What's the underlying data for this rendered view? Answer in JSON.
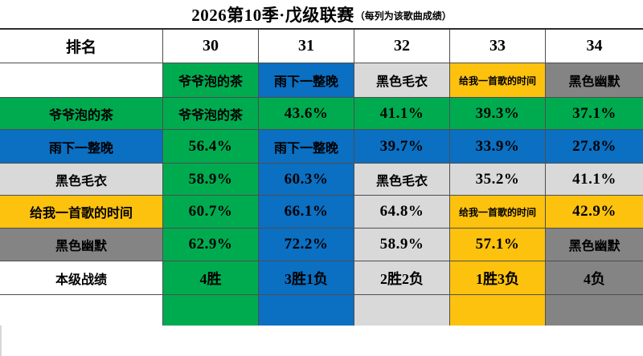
{
  "title": {
    "main": "2026第10季·戊级联赛",
    "note": "（每列为该歌曲成绩）"
  },
  "colors": {
    "white": "#ffffff",
    "green": "#00ab50",
    "blue": "#0b6fc2",
    "lightgray": "#d9d9d9",
    "yellow": "#fdc20e",
    "darkgray": "#848484"
  },
  "table": {
    "rows": [
      {
        "cells": [
          {
            "t": "排名",
            "c": "white"
          },
          {
            "t": "30",
            "c": "white"
          },
          {
            "t": "31",
            "c": "white"
          },
          {
            "t": "32",
            "c": "white"
          },
          {
            "t": "33",
            "c": "white"
          },
          {
            "t": "34",
            "c": "white"
          }
        ]
      },
      {
        "cells": [
          {
            "t": "",
            "c": "white"
          },
          {
            "t": "爷爷泡的茶",
            "c": "green"
          },
          {
            "t": "雨下一整晚",
            "c": "blue"
          },
          {
            "t": "黑色毛衣",
            "c": "lightgray"
          },
          {
            "t": "给我一首歌的时间",
            "c": "yellow"
          },
          {
            "t": "黑色幽默",
            "c": "darkgray"
          }
        ]
      },
      {
        "cells": [
          {
            "t": "爷爷泡的茶",
            "c": "green"
          },
          {
            "t": "爷爷泡的茶",
            "c": "green"
          },
          {
            "t": "43.6%",
            "c": "green"
          },
          {
            "t": "41.1%",
            "c": "green"
          },
          {
            "t": "39.3%",
            "c": "green"
          },
          {
            "t": "37.1%",
            "c": "green"
          }
        ]
      },
      {
        "cells": [
          {
            "t": "雨下一整晚",
            "c": "blue"
          },
          {
            "t": "56.4%",
            "c": "green"
          },
          {
            "t": "雨下一整晚",
            "c": "blue"
          },
          {
            "t": "39.7%",
            "c": "blue"
          },
          {
            "t": "33.9%",
            "c": "blue"
          },
          {
            "t": "27.8%",
            "c": "blue"
          }
        ]
      },
      {
        "cells": [
          {
            "t": "黑色毛衣",
            "c": "lightgray"
          },
          {
            "t": "58.9%",
            "c": "green"
          },
          {
            "t": "60.3%",
            "c": "blue"
          },
          {
            "t": "黑色毛衣",
            "c": "lightgray"
          },
          {
            "t": "35.2%",
            "c": "lightgray"
          },
          {
            "t": "41.1%",
            "c": "lightgray"
          }
        ]
      },
      {
        "cells": [
          {
            "t": "给我一首歌的时间",
            "c": "yellow"
          },
          {
            "t": "60.7%",
            "c": "green"
          },
          {
            "t": "66.1%",
            "c": "blue"
          },
          {
            "t": "64.8%",
            "c": "lightgray"
          },
          {
            "t": "给我一首歌的时间",
            "c": "yellow"
          },
          {
            "t": "42.9%",
            "c": "yellow"
          }
        ]
      },
      {
        "cells": [
          {
            "t": "黑色幽默",
            "c": "darkgray"
          },
          {
            "t": "62.9%",
            "c": "green"
          },
          {
            "t": "72.2%",
            "c": "blue"
          },
          {
            "t": "58.9%",
            "c": "lightgray"
          },
          {
            "t": "57.1%",
            "c": "yellow"
          },
          {
            "t": "黑色幽默",
            "c": "darkgray"
          }
        ]
      },
      {
        "cells": [
          {
            "t": "本级战绩",
            "c": "white"
          },
          {
            "t": "4胜",
            "c": "green"
          },
          {
            "t": "3胜1负",
            "c": "blue"
          },
          {
            "t": "2胜2负",
            "c": "lightgray"
          },
          {
            "t": "1胜3负",
            "c": "yellow"
          },
          {
            "t": "4负",
            "c": "darkgray"
          }
        ]
      },
      {
        "cells": [
          {
            "t": "",
            "c": "white"
          },
          {
            "t": "",
            "c": "green"
          },
          {
            "t": "",
            "c": "blue"
          },
          {
            "t": "",
            "c": "lightgray"
          },
          {
            "t": "",
            "c": "yellow"
          },
          {
            "t": "",
            "c": "darkgray"
          }
        ]
      }
    ]
  },
  "chart_data": {
    "type": "table",
    "title": "2026第10季·戊级联赛",
    "subtitle": "每列为该歌曲成绩",
    "corner_label": "排名",
    "column_headers": [
      "30",
      "31",
      "32",
      "33",
      "34"
    ],
    "column_songs": [
      "爷爷泡的茶",
      "雨下一整晚",
      "黑色毛衣",
      "给我一首歌的时间",
      "黑色幽默"
    ],
    "row_songs": [
      "爷爷泡的茶",
      "雨下一整晚",
      "黑色毛衣",
      "给我一首歌的时间",
      "黑色幽默"
    ],
    "matrix_column_song_percent_vs_row_song": [
      [
        null,
        43.6,
        41.1,
        39.3,
        37.1
      ],
      [
        56.4,
        null,
        39.7,
        33.9,
        27.8
      ],
      [
        58.9,
        60.3,
        null,
        35.2,
        41.1
      ],
      [
        60.7,
        66.1,
        64.8,
        null,
        42.9
      ],
      [
        62.9,
        72.2,
        58.9,
        57.1,
        null
      ]
    ],
    "records_row_label": "本级战绩",
    "records": [
      "4胜",
      "3胜1负",
      "2胜2负",
      "1胜3负",
      "4负"
    ],
    "song_colors": {
      "爷爷泡的茶": "#00ab50",
      "雨下一整晚": "#0b6fc2",
      "黑色毛衣": "#d9d9d9",
      "给我一首歌的时间": "#fdc20e",
      "黑色幽默": "#848484"
    },
    "cell_color_meaning": "each matchup cell is filled with the winning song's color"
  }
}
